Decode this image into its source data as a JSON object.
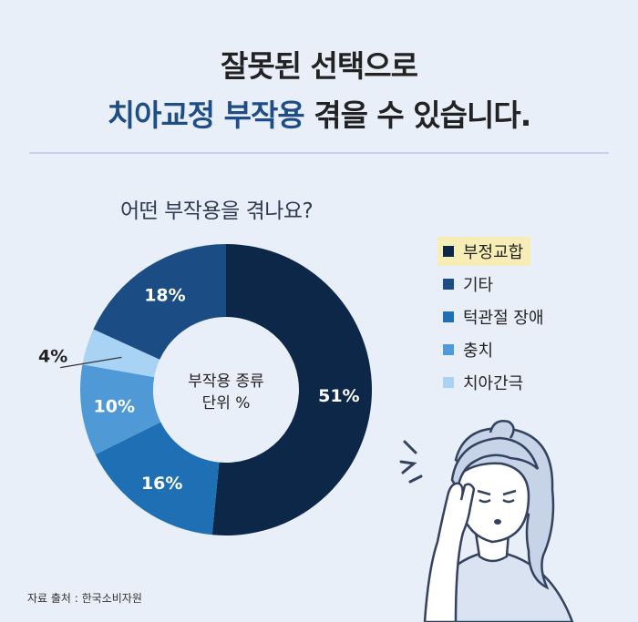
{
  "header": {
    "line1": "잘못된 선택으로",
    "line2_highlight": "치아교정 부작용",
    "line2_rest": " 겪을 수 있습니다."
  },
  "question": "어떤 부작용을 겪나요?",
  "center_label": [
    "부작용 종류",
    "단위 %"
  ],
  "source": "자료 출처 : 한국소비자원",
  "chart_data": {
    "type": "pie",
    "variant": "donut",
    "title": "어떤 부작용을 겪나요?",
    "categories": [
      "부정교합",
      "기타",
      "턱관절 장애",
      "충치",
      "치아간극"
    ],
    "values": [
      51,
      18,
      16,
      10,
      4
    ],
    "draw_order": [
      "부정교합",
      "턱관절 장애",
      "충치",
      "치아간극",
      "기타"
    ],
    "labels": [
      "51%",
      "18%",
      "16%",
      "10%",
      "4%"
    ],
    "colors": {
      "부정교합": "#0d2748",
      "기타": "#1b4d84",
      "턱관절 장애": "#1e6fb3",
      "충치": "#4f9ad6",
      "치아간극": "#a9d3f5"
    },
    "legend_position": "right",
    "unit": "%"
  }
}
